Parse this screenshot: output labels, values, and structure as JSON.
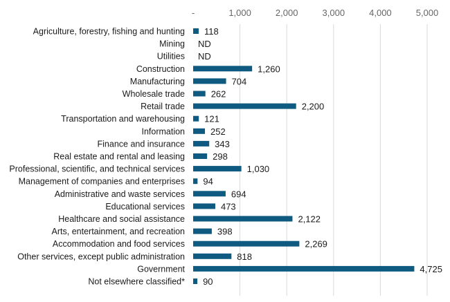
{
  "chart_data": {
    "type": "bar",
    "orientation": "horizontal",
    "title": "",
    "xlabel": "",
    "ylabel": "",
    "xlim": [
      0,
      5000
    ],
    "grid": true,
    "legend": "none",
    "tick_values": [
      0,
      1000,
      2000,
      3000,
      4000,
      5000
    ],
    "tick_labels": [
      "-",
      "1,000",
      "2,000",
      "3,000",
      "4,000",
      "5,000"
    ],
    "bar_color": "#0e5a80",
    "categories": [
      "Agriculture, forestry, fishing and hunting",
      "Mining",
      "Utilities",
      "Construction",
      "Manufacturing",
      "Wholesale trade",
      "Retail trade",
      "Transportation and warehousing",
      "Information",
      "Finance and insurance",
      "Real estate and rental and leasing",
      "Professional, scientific, and technical services",
      "Management of companies and enterprises",
      "Administrative and waste services",
      "Educational services",
      "Healthcare and social assistance",
      "Arts, entertainment, and recreation",
      "Accommodation and food services",
      "Other services, except public administration",
      "Government",
      "Not elsewhere classified*"
    ],
    "values": [
      118,
      null,
      null,
      1260,
      704,
      262,
      2200,
      121,
      252,
      343,
      298,
      1030,
      94,
      694,
      473,
      2122,
      398,
      2269,
      818,
      4725,
      90
    ],
    "value_labels": [
      "118",
      "ND",
      "ND",
      "1,260",
      "704",
      "262",
      "2,200",
      "121",
      "252",
      "343",
      "298",
      "1,030",
      "94",
      "694",
      "473",
      "2,122",
      "398",
      "2,269",
      "818",
      "4,725",
      "90"
    ]
  }
}
